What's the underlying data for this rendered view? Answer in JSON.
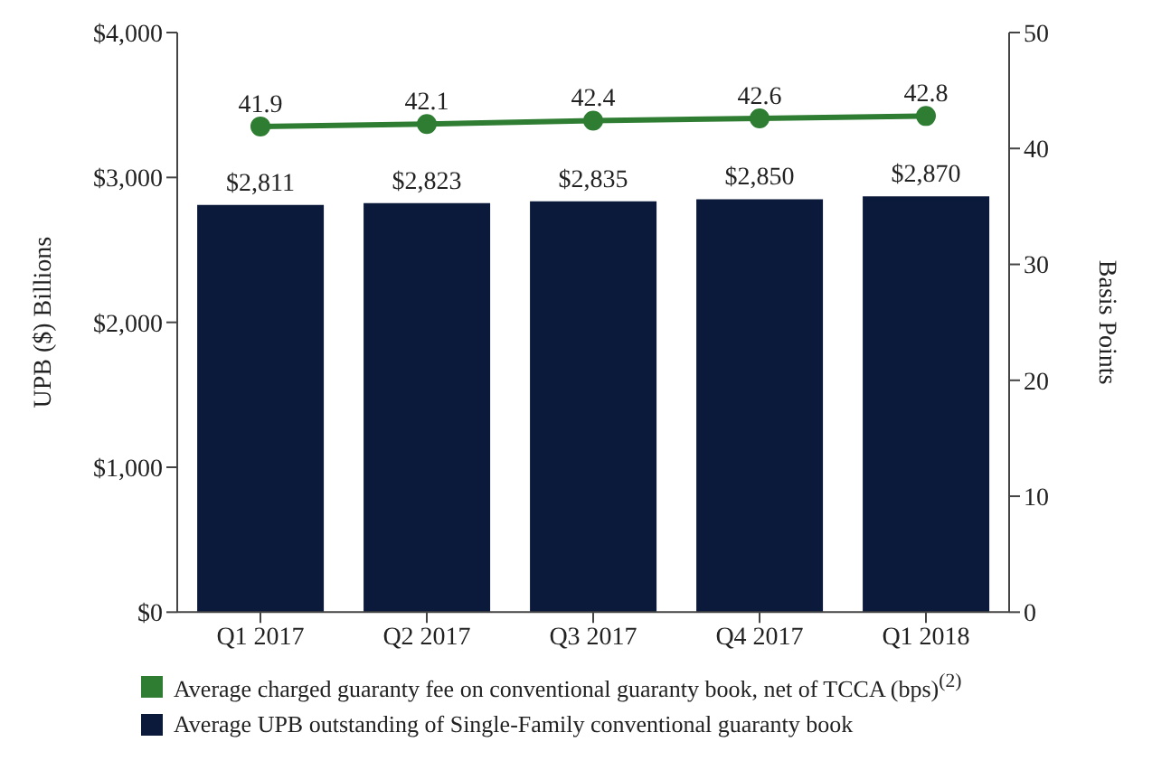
{
  "chart_data": {
    "type": "bar",
    "categories": [
      "Q1 2017",
      "Q2 2017",
      "Q3 2017",
      "Q4 2017",
      "Q1 2018"
    ],
    "series": [
      {
        "name": "Average charged guaranty fee on conventional guaranty book, net of TCCA (bps)$^{(2)}$",
        "type": "line",
        "axis": "y2",
        "color": "#2e7d32",
        "values": [
          41.9,
          42.1,
          42.4,
          42.6,
          42.8
        ]
      },
      {
        "name": "Average UPB outstanding of Single-Family conventional guaranty book",
        "color": "#0b1a3a",
        "values": [
          2811,
          2823,
          2835,
          2850,
          2870
        ]
      }
    ],
    "value_labels": [
      [
        "41.9",
        "42.1",
        "42.4",
        "42.6",
        "42.8"
      ],
      [
        "$2,811",
        "$2,823",
        "$2,835",
        "$2,850",
        "$2,870"
      ]
    ],
    "ylabel": "UPB ($) Billions",
    "y2label": "Basis Points",
    "ylim": [
      0,
      4000
    ],
    "yticks": [
      {
        "value": 0,
        "label": "$0"
      },
      {
        "value": 1000,
        "label": "$1,000"
      },
      {
        "value": 2000,
        "label": "$2,000"
      },
      {
        "value": 3000,
        "label": "$3,000"
      },
      {
        "value": 4000,
        "label": "$4,000"
      }
    ],
    "y2lim": [
      0,
      50
    ],
    "y2ticks": [
      0,
      10,
      20,
      30,
      40,
      50
    ],
    "marker": "circle",
    "line_style": "solid",
    "legend": "bottom"
  }
}
